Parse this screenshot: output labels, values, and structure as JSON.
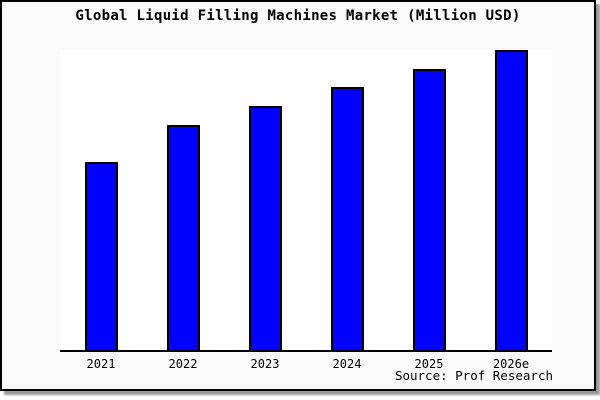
{
  "chart_data": {
    "type": "bar",
    "title": "Global Liquid Filling Machines Market (Million USD)",
    "unit": "Million USD",
    "categories": [
      "2021",
      "2022",
      "2023",
      "2024",
      "2025",
      "2026e"
    ],
    "values_pct_of_max": [
      62.7,
      75.0,
      81.3,
      87.7,
      93.7,
      100.0
    ],
    "xlabel": "",
    "ylabel": "",
    "y_axis_labels_visible": false,
    "gridlines": false,
    "legend": "none",
    "bar_outline": true
  },
  "source": {
    "text": "Source: Prof Research"
  },
  "colors": {
    "bar_fill": "#0000ff",
    "bar_border": "#000000",
    "frame_background": "#fafafa",
    "plot_background": "#ffffff",
    "axis": "#000000",
    "text": "#000000",
    "shadow": "#999999"
  }
}
